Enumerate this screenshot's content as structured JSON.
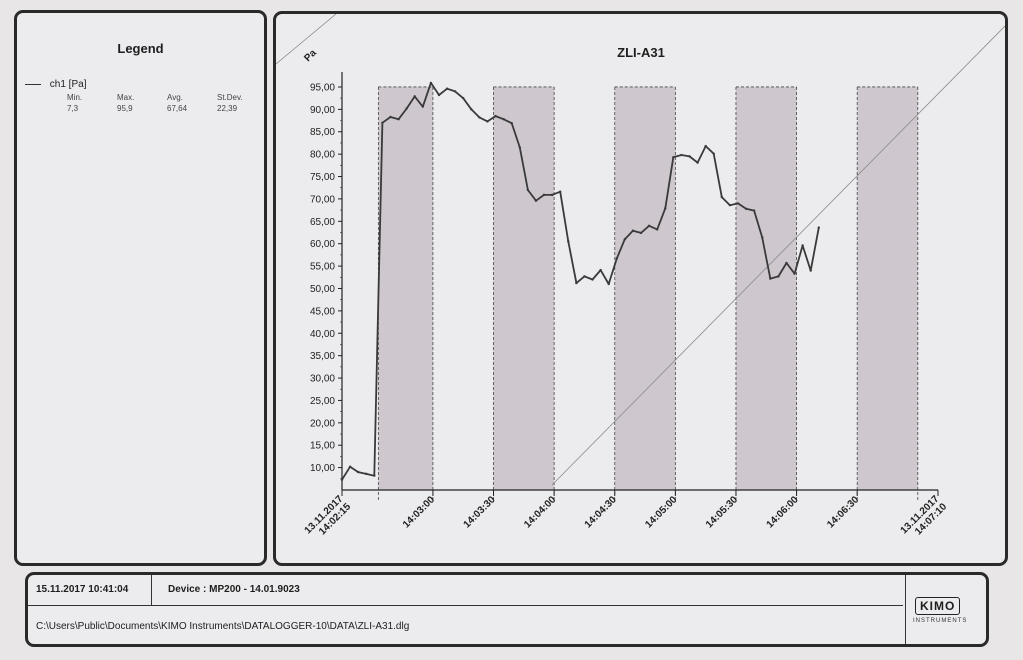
{
  "legend": {
    "title": "Legend",
    "series_label": "ch1  [Pa]",
    "stats": [
      {
        "label": "Min.",
        "value": "7,3"
      },
      {
        "label": "Max.",
        "value": "95,9"
      },
      {
        "label": "Avg.",
        "value": "67,64"
      },
      {
        "label": "St.Dev.",
        "value": "22,39"
      }
    ]
  },
  "footer": {
    "datetime": "15.11.2017 10:41:04",
    "device": "Device : MP200 - 14.01.9023",
    "path": "C:\\Users\\Public\\Documents\\KIMO Instruments\\DATALOGGER-10\\DATA\\ZLI-A31.dlg",
    "logo": "KIMO",
    "logo_sub": "INSTRUMENTS"
  },
  "chart_data": {
    "type": "line",
    "title": "ZLI-A31",
    "ylabel": "Pa",
    "ylim": [
      5,
      97
    ],
    "xlim": [
      "14:02:15",
      "14:07:10"
    ],
    "y_ticks": [
      "10,00",
      "15,00",
      "20,00",
      "25,00",
      "30,00",
      "35,00",
      "40,00",
      "45,00",
      "50,00",
      "55,00",
      "60,00",
      "65,00",
      "70,00",
      "75,00",
      "80,00",
      "85,00",
      "90,00",
      "95,00"
    ],
    "x_ticks": [
      {
        "t": "14:02:15",
        "label": [
          "13.11.2017",
          "14:02:15"
        ]
      },
      {
        "t": "14:03:00",
        "label": [
          "14:03:00"
        ]
      },
      {
        "t": "14:03:30",
        "label": [
          "14:03:30"
        ]
      },
      {
        "t": "14:04:00",
        "label": [
          "14:04:00"
        ]
      },
      {
        "t": "14:04:30",
        "label": [
          "14:04:30"
        ]
      },
      {
        "t": "14:05:00",
        "label": [
          "14:05:00"
        ]
      },
      {
        "t": "14:05:30",
        "label": [
          "14:05:30"
        ]
      },
      {
        "t": "14:06:00",
        "label": [
          "14:06:00"
        ]
      },
      {
        "t": "14:06:30",
        "label": [
          "14:06:30"
        ]
      },
      {
        "t": "14:07:10",
        "label": [
          "13.11.2017",
          "14:07:10"
        ]
      }
    ],
    "shaded_intervals": [
      [
        "14:02:33",
        "14:03:00"
      ],
      [
        "14:03:30",
        "14:04:00"
      ],
      [
        "14:04:30",
        "14:05:00"
      ],
      [
        "14:05:30",
        "14:06:00"
      ],
      [
        "14:06:30",
        "14:07:00"
      ]
    ],
    "series": [
      {
        "points": [
          [
            "14:02:15",
            7.3
          ],
          [
            "14:02:19",
            10.2
          ],
          [
            "14:02:23",
            9.0
          ],
          [
            "14:02:27",
            8.6
          ],
          [
            "14:02:31",
            8.2
          ],
          [
            "14:02:35",
            87.0
          ],
          [
            "14:02:39",
            88.3
          ],
          [
            "14:02:43",
            87.8
          ],
          [
            "14:02:47",
            90.2
          ],
          [
            "14:02:51",
            92.9
          ],
          [
            "14:02:55",
            90.6
          ],
          [
            "14:02:59",
            95.9
          ],
          [
            "14:03:03",
            93.2
          ],
          [
            "14:03:07",
            94.6
          ],
          [
            "14:03:11",
            94.0
          ],
          [
            "14:03:15",
            92.5
          ],
          [
            "14:03:19",
            90.0
          ],
          [
            "14:03:23",
            88.2
          ],
          [
            "14:03:27",
            87.3
          ],
          [
            "14:03:31",
            88.5
          ],
          [
            "14:03:35",
            87.8
          ],
          [
            "14:03:39",
            86.9
          ],
          [
            "14:03:43",
            81.5
          ],
          [
            "14:03:47",
            72.0
          ],
          [
            "14:03:51",
            69.6
          ],
          [
            "14:03:55",
            70.9
          ],
          [
            "14:03:59",
            70.9
          ],
          [
            "14:04:03",
            71.6
          ],
          [
            "14:04:07",
            60.5
          ],
          [
            "14:04:11",
            51.2
          ],
          [
            "14:04:15",
            52.7
          ],
          [
            "14:04:19",
            52.0
          ],
          [
            "14:04:23",
            54.1
          ],
          [
            "14:04:27",
            51.0
          ],
          [
            "14:04:31",
            56.7
          ],
          [
            "14:04:35",
            61.0
          ],
          [
            "14:04:39",
            62.9
          ],
          [
            "14:04:43",
            62.4
          ],
          [
            "14:04:47",
            64.0
          ],
          [
            "14:04:51",
            63.2
          ],
          [
            "14:04:55",
            67.9
          ],
          [
            "14:04:59",
            79.3
          ],
          [
            "14:05:03",
            79.8
          ],
          [
            "14:05:07",
            79.5
          ],
          [
            "14:05:11",
            78.1
          ],
          [
            "14:05:15",
            81.8
          ],
          [
            "14:05:19",
            80.1
          ],
          [
            "14:05:23",
            70.4
          ],
          [
            "14:05:27",
            68.6
          ],
          [
            "14:05:31",
            69.0
          ],
          [
            "14:05:35",
            67.8
          ],
          [
            "14:05:39",
            67.4
          ],
          [
            "14:05:43",
            61.4
          ],
          [
            "14:05:47",
            52.2
          ],
          [
            "14:05:51",
            52.7
          ],
          [
            "14:05:55",
            55.7
          ],
          [
            "14:05:59",
            53.3
          ],
          [
            "14:06:03",
            59.6
          ],
          [
            "14:06:07",
            54.0
          ],
          [
            "14:06:11",
            63.6
          ]
        ]
      }
    ]
  },
  "colors": {
    "line": "#3a3a3a",
    "shade": "#b6aab4",
    "background": "#ecebed"
  }
}
